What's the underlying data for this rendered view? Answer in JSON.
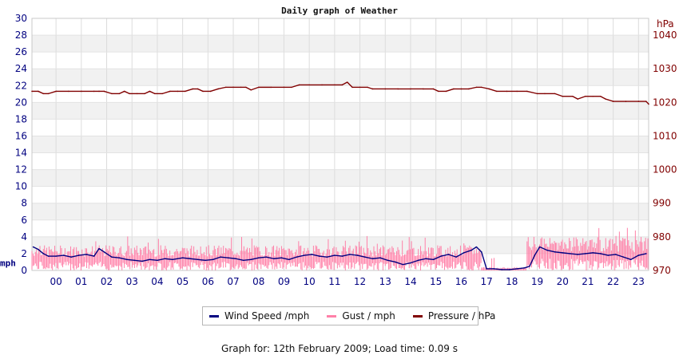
{
  "chart_data": {
    "type": "line",
    "title": "Daily graph of Weather",
    "y_left": {
      "unit": "mph",
      "range": [
        0,
        30
      ],
      "ticks": [
        0,
        2,
        4,
        6,
        8,
        10,
        12,
        14,
        16,
        18,
        20,
        22,
        24,
        26,
        28,
        30
      ]
    },
    "y_right": {
      "unit": "hPa",
      "range": [
        970,
        1045
      ],
      "ticks": [
        970,
        980,
        990,
        1000,
        1010,
        1020,
        1030,
        1040
      ]
    },
    "x_range": [
      -0.95,
      23.4
    ],
    "x_ticks": [
      "00",
      "01",
      "02",
      "03",
      "04",
      "05",
      "06",
      "07",
      "08",
      "09",
      "10",
      "11",
      "12",
      "13",
      "14",
      "15",
      "16",
      "17",
      "18",
      "19",
      "20",
      "21",
      "22",
      "23"
    ],
    "grid": true,
    "legend_position": "bottom",
    "series": [
      {
        "name": "Wind Speed /mph",
        "axis": "left",
        "color": "#000080",
        "x": [
          -0.9,
          -0.7,
          -0.5,
          -0.3,
          0.0,
          0.3,
          0.6,
          0.9,
          1.2,
          1.5,
          1.7,
          1.9,
          2.2,
          2.5,
          2.8,
          3.1,
          3.4,
          3.7,
          4.0,
          4.3,
          4.6,
          5.0,
          5.3,
          5.6,
          5.9,
          6.2,
          6.5,
          6.8,
          7.1,
          7.4,
          7.7,
          8.0,
          8.3,
          8.6,
          8.9,
          9.2,
          9.5,
          9.8,
          10.1,
          10.4,
          10.7,
          11.0,
          11.3,
          11.6,
          11.9,
          12.2,
          12.5,
          12.8,
          13.1,
          13.4,
          13.7,
          14.0,
          14.3,
          14.6,
          14.9,
          15.2,
          15.5,
          15.8,
          16.1,
          16.4,
          16.6,
          16.8,
          17.0,
          17.3,
          17.6,
          17.9,
          18.2,
          18.5,
          18.7,
          18.9,
          19.1,
          19.4,
          19.7,
          20.0,
          20.3,
          20.6,
          20.9,
          21.2,
          21.5,
          21.8,
          22.1,
          22.4,
          22.7,
          23.0,
          23.3
        ],
        "values": [
          2.8,
          2.5,
          2.0,
          1.7,
          1.7,
          1.8,
          1.6,
          1.8,
          1.9,
          1.7,
          2.6,
          2.2,
          1.6,
          1.5,
          1.3,
          1.2,
          1.1,
          1.3,
          1.2,
          1.4,
          1.3,
          1.5,
          1.4,
          1.3,
          1.2,
          1.3,
          1.6,
          1.5,
          1.4,
          1.2,
          1.3,
          1.5,
          1.6,
          1.4,
          1.5,
          1.3,
          1.6,
          1.8,
          1.9,
          1.7,
          1.6,
          1.8,
          1.7,
          1.9,
          1.8,
          1.6,
          1.4,
          1.5,
          1.2,
          1.0,
          0.7,
          0.9,
          1.2,
          1.4,
          1.3,
          1.7,
          1.9,
          1.6,
          2.1,
          2.4,
          2.8,
          2.2,
          0.2,
          0.2,
          0.1,
          0.1,
          0.2,
          0.3,
          0.5,
          1.8,
          2.8,
          2.4,
          2.2,
          2.1,
          2.0,
          1.9,
          2.0,
          2.1,
          2.0,
          1.8,
          1.9,
          1.6,
          1.3,
          1.8,
          2.0
        ]
      },
      {
        "name": "Gust / mph",
        "axis": "left",
        "color": "#ff80a8",
        "values_note": "",
        "low": 0.0,
        "high_segments": [
          {
            "from": -0.95,
            "to": 16.8,
            "high": 3.0
          },
          {
            "from": 16.8,
            "to": 18.6,
            "high": 0.4
          },
          {
            "from": 18.6,
            "to": 23.4,
            "high": 4.0
          }
        ]
      },
      {
        "name": "Pressure / hPa",
        "axis": "right",
        "color": "#800000",
        "x": [
          -0.95,
          -0.7,
          -0.5,
          -0.3,
          0.0,
          0.5,
          1.0,
          1.5,
          1.7,
          1.9,
          2.2,
          2.5,
          2.7,
          2.9,
          3.2,
          3.5,
          3.7,
          3.9,
          4.2,
          4.5,
          4.8,
          5.1,
          5.4,
          5.6,
          5.8,
          6.1,
          6.4,
          6.7,
          7.0,
          7.3,
          7.5,
          7.7,
          8.0,
          8.5,
          9.0,
          9.3,
          9.6,
          10.0,
          10.5,
          11.0,
          11.3,
          11.5,
          11.7,
          12.0,
          12.3,
          12.5,
          13.0,
          13.5,
          14.0,
          14.5,
          14.9,
          15.1,
          15.4,
          15.7,
          16.0,
          16.3,
          16.6,
          16.8,
          17.1,
          17.4,
          17.8,
          18.2,
          18.6,
          19.0,
          19.3,
          19.7,
          20.0,
          20.4,
          20.6,
          20.9,
          21.2,
          21.5,
          21.7,
          22.0,
          22.5,
          23.0,
          23.3,
          23.4
        ],
        "values": [
          1023.3,
          1023.3,
          1022.6,
          1022.6,
          1023.3,
          1023.3,
          1023.3,
          1023.3,
          1023.3,
          1023.3,
          1022.6,
          1022.6,
          1023.3,
          1022.6,
          1022.6,
          1022.6,
          1023.3,
          1022.6,
          1022.6,
          1023.3,
          1023.3,
          1023.3,
          1024.0,
          1024.0,
          1023.3,
          1023.3,
          1024.0,
          1024.5,
          1024.5,
          1024.5,
          1024.5,
          1023.7,
          1024.5,
          1024.5,
          1024.5,
          1024.5,
          1025.2,
          1025.2,
          1025.2,
          1025.2,
          1025.2,
          1026.0,
          1024.5,
          1024.5,
          1024.5,
          1024.0,
          1024.0,
          1024.0,
          1024.0,
          1024.0,
          1024.0,
          1023.3,
          1023.3,
          1024.0,
          1024.0,
          1024.0,
          1024.5,
          1024.5,
          1024.0,
          1023.3,
          1023.3,
          1023.3,
          1023.3,
          1022.6,
          1022.6,
          1022.6,
          1021.8,
          1021.8,
          1021.0,
          1021.8,
          1021.8,
          1021.8,
          1021.0,
          1020.3,
          1020.3,
          1020.3,
          1020.3,
          1019.5
        ]
      }
    ]
  },
  "legend": {
    "wind": "Wind Speed /mph",
    "gust": "Gust / mph",
    "pressure": "Pressure / hPa"
  },
  "footer": "Graph for: 12th February 2009; Load time: 0.09 s"
}
